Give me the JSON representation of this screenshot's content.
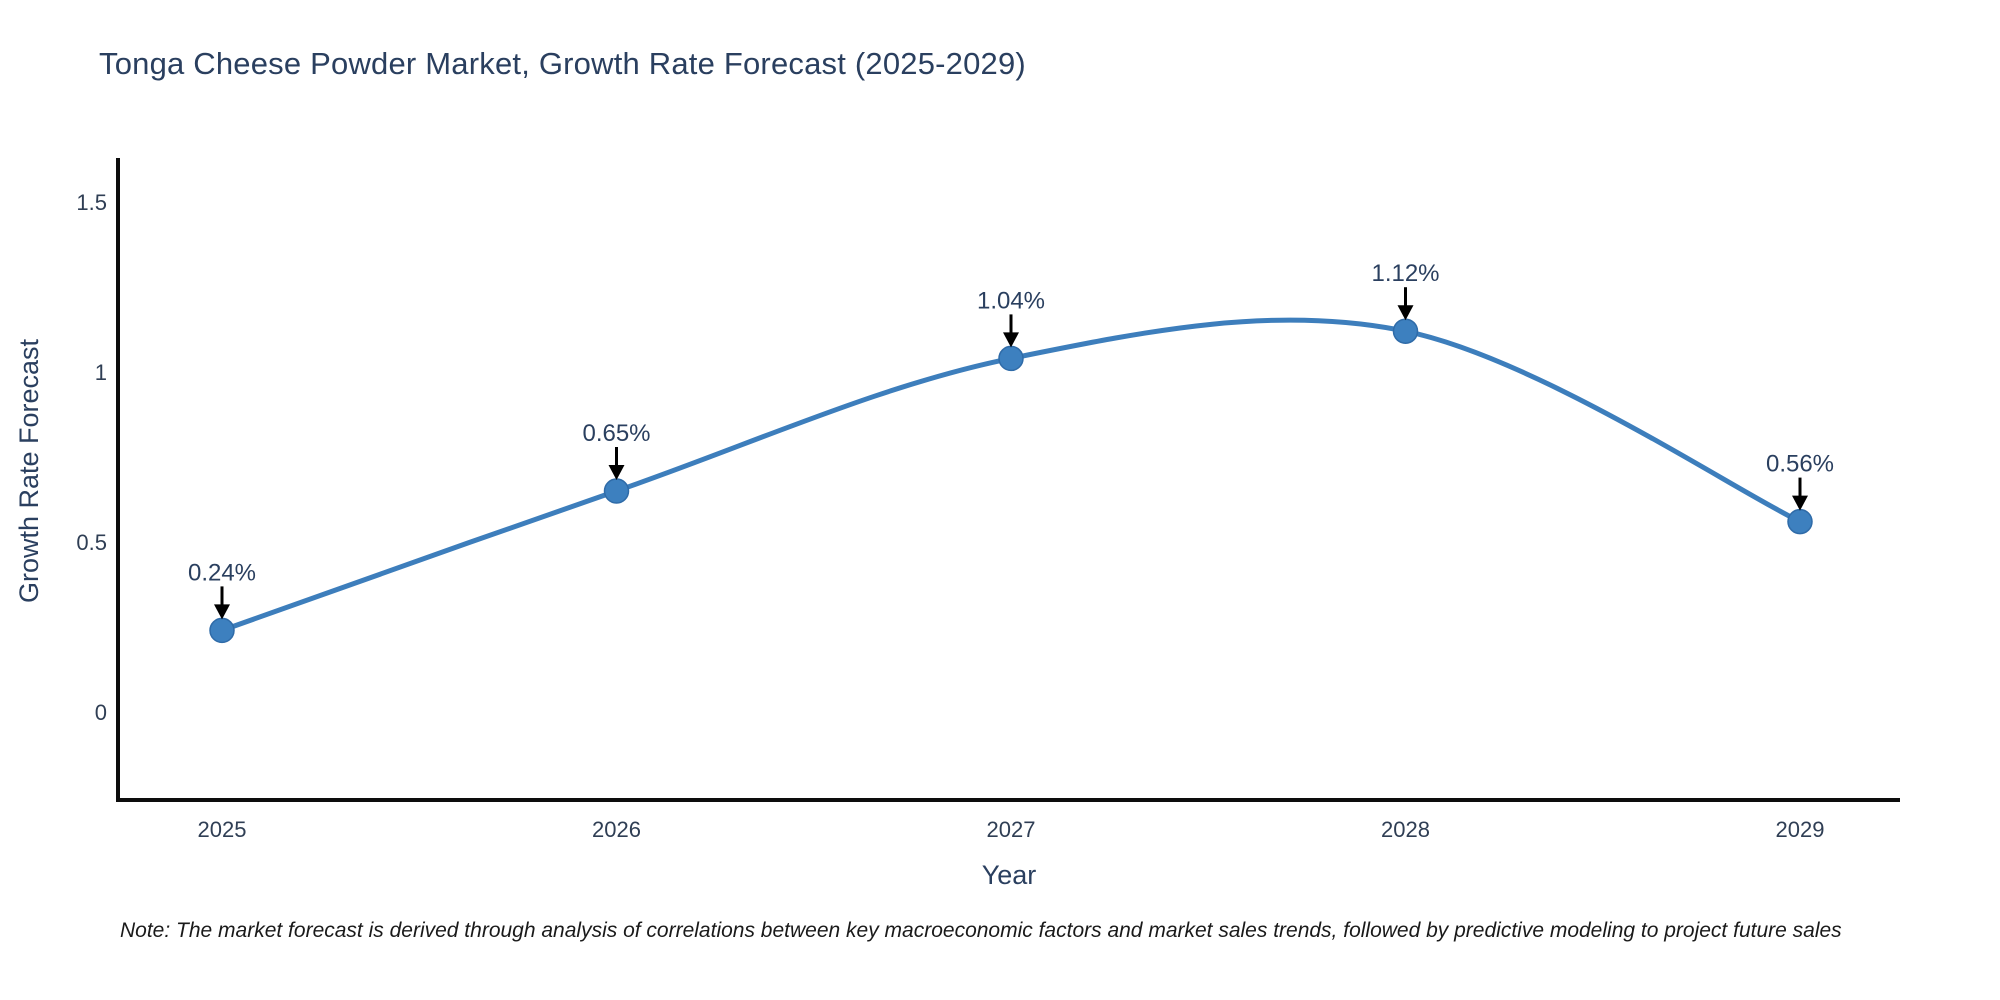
{
  "title": "Tonga Cheese Powder Market, Growth Rate Forecast (2025-2029)",
  "note": "Note: The market forecast is derived through analysis of correlations between key macroeconomic factors and market sales trends, followed by predictive modeling to project future sales",
  "chart_data": {
    "type": "line",
    "title": "Tonga Cheese Powder Market, Growth Rate Forecast (2025-2029)",
    "xlabel": "Year",
    "ylabel": "Growth Rate Forecast",
    "categories": [
      "2025",
      "2026",
      "2027",
      "2028",
      "2029"
    ],
    "values": [
      0.24,
      0.65,
      1.04,
      1.12,
      0.56
    ],
    "point_labels": [
      "0.24%",
      "0.65%",
      "1.04%",
      "1.12%",
      "0.56%"
    ],
    "y_ticks": [
      "0",
      "0.5",
      "1",
      "1.5"
    ],
    "y_tick_values": [
      0,
      0.5,
      1,
      1.5
    ],
    "ylim": [
      -0.26,
      1.62
    ],
    "line_shape": "spline",
    "grid": false,
    "legend": "none",
    "annotation_style": "label-above-with-down-arrow",
    "colors": {
      "line": "#3d7ebc",
      "marker": "#3d80bf",
      "marker_edge": "#2f6ba8",
      "axis": "#0d0d0d",
      "annotation": "#000000",
      "title_text": "#2a3f5f",
      "tick_text": "#2f3e54",
      "note_text": "#1a1a1a"
    }
  }
}
